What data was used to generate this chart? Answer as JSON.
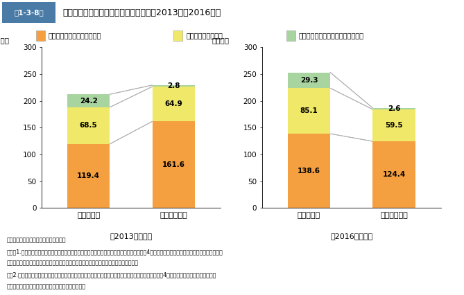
{
  "legend_labels": [
    "常用（パートタイムを除く）",
    "常用的パートタイム",
    "臨時・季節（パートタイムを含む）"
  ],
  "left_chart": {
    "title": "【2013年平均】",
    "categories": [
      "有効求人数",
      "有効求職者数"
    ],
    "layer1": [
      119.4,
      161.6
    ],
    "layer2": [
      68.5,
      64.9
    ],
    "layer3": [
      24.2,
      2.8
    ],
    "ylabel": "（万人）"
  },
  "right_chart": {
    "title": "【2016年平均】",
    "categories": [
      "有効求人数",
      "有効求職者数"
    ],
    "layer1": [
      138.6,
      124.4
    ],
    "layer2": [
      85.1,
      59.5
    ],
    "layer3": [
      29.3,
      2.6
    ],
    "ylabel": "（万人）"
  },
  "color_layer1": "#F5A040",
  "color_layer2": "#F0E868",
  "color_layer3": "#A8D4A0",
  "color_layer1_edge": "#E8943A",
  "color_layer2_edge": "#E0D858",
  "color_layer3_edge": "#98C490",
  "header_bg": "#4A7BA7",
  "header_text": "第1-3-8図",
  "header_subtitle": "雇用形態別有効求人数と有効求職者数（2013年～2016年）",
  "note_line1": "資料：厚生労働省「一般職業紹介状況」",
  "note_line2": "（注）1.「常用（パートタイムを除く）」とは、雇用契約において雇用期間の定めがないか、4か月以上の雇用期間が定められている者のうち、",
  "note_line3": "　　　パートタイム・季節労働者を除いた者であり、正社員・正職員の定義とは異なる。",
  "note_line4": "　　2.「常用的パートタイム」とは、パートタイムのうち、雇用契約において雇用期間の定めがないか、4か月以上の雇用期間が定められて",
  "note_line5": "　　　いる者のうち、季節労働者を除いた者である。",
  "yticks": [
    0,
    50,
    100,
    150,
    200,
    250,
    300
  ],
  "ylim": [
    0,
    300
  ]
}
